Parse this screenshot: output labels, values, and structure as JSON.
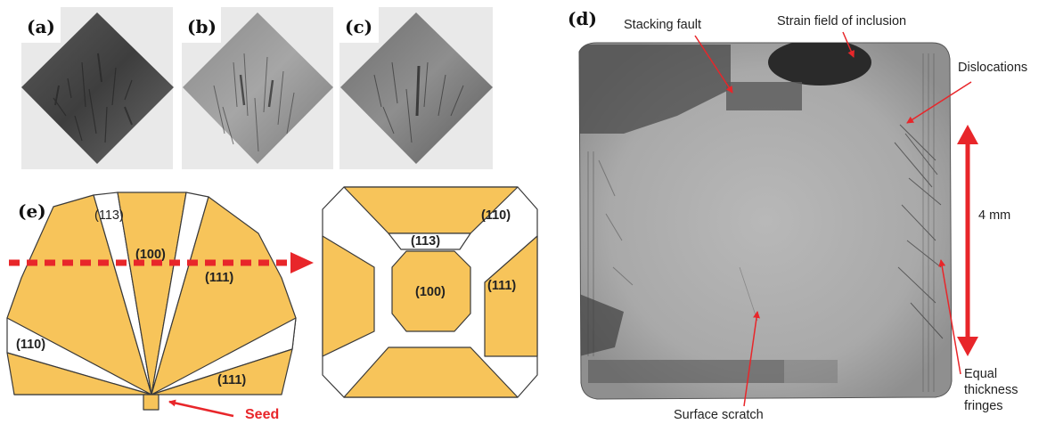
{
  "panel_labels": {
    "a": "(a)",
    "b": "(b)",
    "c": "(c)",
    "d": "(d)",
    "e": "(e)"
  },
  "colors": {
    "sector_fill": "#f7c45a",
    "outline": "#3a3a3a",
    "arrow": "#e8262a"
  },
  "panel_e": {
    "side_view": {
      "labels": {
        "p113": "(113)",
        "p100": "(100)",
        "p111_upper": "(111)",
        "p110": "(110)",
        "p111_lower": "(111)"
      },
      "seed_label": "Seed"
    },
    "top_view": {
      "labels": {
        "p110": "(110)",
        "p113": "(113)",
        "p100": "(100)",
        "p111": "(111)"
      }
    }
  },
  "panel_d": {
    "annotations": {
      "stacking_fault": "Stacking fault",
      "strain_field": "Strain field of inclusion",
      "dislocations": "Dislocations",
      "scale": "4 mm",
      "surface_scratch": "Surface scratch",
      "fringes_line1": "Equal",
      "fringes_line2": "thickness",
      "fringes_line3": "fringes"
    }
  }
}
